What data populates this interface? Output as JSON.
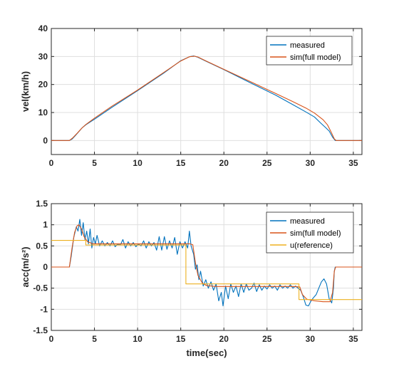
{
  "chart_data": [
    {
      "type": "line",
      "xlabel": "",
      "ylabel": "vel(km/h)",
      "xlim": [
        0,
        36
      ],
      "ylim": [
        -5,
        40
      ],
      "xticks": [
        0,
        5,
        10,
        15,
        20,
        25,
        30,
        35
      ],
      "yticks": [
        0,
        10,
        20,
        30,
        40
      ],
      "grid": true,
      "legend_position": "top-right",
      "series": [
        {
          "name": "measured",
          "color": "#0072BD",
          "points": [
            [
              0,
              0
            ],
            [
              2.1,
              0
            ],
            [
              2.4,
              0.5
            ],
            [
              2.8,
              1.8
            ],
            [
              3.2,
              3.2
            ],
            [
              3.6,
              4.6
            ],
            [
              4,
              5.6
            ],
            [
              5,
              7.6
            ],
            [
              7,
              11.8
            ],
            [
              10,
              17.8
            ],
            [
              13,
              24
            ],
            [
              15,
              28.5
            ],
            [
              16,
              29.9
            ],
            [
              16.5,
              30.2
            ],
            [
              17,
              29.7
            ],
            [
              18,
              28.2
            ],
            [
              20,
              25.3
            ],
            [
              23,
              20.7
            ],
            [
              26,
              16.2
            ],
            [
              28,
              12.8
            ],
            [
              29.5,
              10.2
            ],
            [
              30.5,
              8.4
            ],
            [
              31.2,
              6.3
            ],
            [
              31.7,
              4.9
            ],
            [
              32.2,
              3.4
            ],
            [
              32.6,
              1.2
            ],
            [
              32.9,
              0
            ],
            [
              36,
              0
            ]
          ]
        },
        {
          "name": "sim(full model)",
          "color": "#D95319",
          "points": [
            [
              0,
              0
            ],
            [
              2.1,
              0
            ],
            [
              2.5,
              1.0
            ],
            [
              3,
              2.6
            ],
            [
              3.5,
              4.3
            ],
            [
              4,
              5.7
            ],
            [
              5,
              8
            ],
            [
              7,
              12.2
            ],
            [
              10,
              18
            ],
            [
              13,
              24.2
            ],
            [
              15,
              28.4
            ],
            [
              16,
              29.9
            ],
            [
              16.6,
              30.1
            ],
            [
              17,
              29.8
            ],
            [
              18,
              28.3
            ],
            [
              20,
              25.4
            ],
            [
              23,
              21.1
            ],
            [
              26,
              16.8
            ],
            [
              28,
              13.9
            ],
            [
              29.5,
              11.6
            ],
            [
              30.5,
              9.8
            ],
            [
              31.5,
              7.4
            ],
            [
              32,
              5.6
            ],
            [
              32.4,
              3.2
            ],
            [
              32.8,
              0.6
            ],
            [
              33,
              0
            ],
            [
              36,
              0
            ]
          ]
        }
      ]
    },
    {
      "type": "line",
      "xlabel": "time(sec)",
      "ylabel": "acc(m/s²)",
      "xlim": [
        0,
        36
      ],
      "ylim": [
        -1.5,
        1.5
      ],
      "xticks": [
        0,
        5,
        10,
        15,
        20,
        25,
        30,
        35
      ],
      "yticks": [
        -1.5,
        -1,
        -0.5,
        0,
        0.5,
        1,
        1.5
      ],
      "ytick_labels": [
        "-1.5",
        "-1",
        "-0.5",
        "0",
        "0.5",
        "1",
        "1.5"
      ],
      "grid": true,
      "legend_position": "top-right",
      "series": [
        {
          "name": "measured",
          "color": "#0072BD",
          "points": [
            [
              0,
              0
            ],
            [
              2.1,
              0
            ],
            [
              2.3,
              0.25
            ],
            [
              2.6,
              0.7
            ],
            [
              2.9,
              0.95
            ],
            [
              3.1,
              0.85
            ],
            [
              3.3,
              1.13
            ],
            [
              3.5,
              0.75
            ],
            [
              3.7,
              1.05
            ],
            [
              3.9,
              0.65
            ],
            [
              4.1,
              0.85
            ],
            [
              4.3,
              0.55
            ],
            [
              4.5,
              0.9
            ],
            [
              4.7,
              0.45
            ],
            [
              4.9,
              0.7
            ],
            [
              5.1,
              0.55
            ],
            [
              5.3,
              0.75
            ],
            [
              5.6,
              0.5
            ],
            [
              5.9,
              0.62
            ],
            [
              6.2,
              0.5
            ],
            [
              6.5,
              0.58
            ],
            [
              6.8,
              0.5
            ],
            [
              7.1,
              0.62
            ],
            [
              7.4,
              0.48
            ],
            [
              7.7,
              0.55
            ],
            [
              8,
              0.52
            ],
            [
              8.3,
              0.65
            ],
            [
              8.6,
              0.45
            ],
            [
              8.9,
              0.6
            ],
            [
              9.2,
              0.5
            ],
            [
              9.5,
              0.58
            ],
            [
              9.8,
              0.48
            ],
            [
              10.1,
              0.55
            ],
            [
              10.4,
              0.5
            ],
            [
              10.7,
              0.62
            ],
            [
              11,
              0.45
            ],
            [
              11.3,
              0.6
            ],
            [
              11.6,
              0.5
            ],
            [
              11.9,
              0.58
            ],
            [
              12.2,
              0.4
            ],
            [
              12.5,
              0.72
            ],
            [
              12.8,
              0.4
            ],
            [
              13.1,
              0.72
            ],
            [
              13.4,
              0.42
            ],
            [
              13.7,
              0.62
            ],
            [
              14,
              0.45
            ],
            [
              14.3,
              0.7
            ],
            [
              14.6,
              0.3
            ],
            [
              14.9,
              0.6
            ],
            [
              15.2,
              0.45
            ],
            [
              15.5,
              0.6
            ],
            [
              15.8,
              0.45
            ],
            [
              16,
              0.85
            ],
            [
              16.2,
              0.5
            ],
            [
              16.5,
              0.3
            ],
            [
              16.7,
              -0.05
            ],
            [
              16.9,
              0.05
            ],
            [
              17.1,
              -0.3
            ],
            [
              17.3,
              -0.1
            ],
            [
              17.6,
              -0.45
            ],
            [
              17.9,
              -0.3
            ],
            [
              18.2,
              -0.5
            ],
            [
              18.5,
              -0.35
            ],
            [
              18.8,
              -0.55
            ],
            [
              19.1,
              -0.4
            ],
            [
              19.4,
              -0.8
            ],
            [
              19.7,
              -0.6
            ],
            [
              19.9,
              -0.92
            ],
            [
              20.2,
              -0.45
            ],
            [
              20.5,
              -0.75
            ],
            [
              20.8,
              -0.4
            ],
            [
              21.1,
              -0.6
            ],
            [
              21.4,
              -0.45
            ],
            [
              21.7,
              -0.7
            ],
            [
              22,
              -0.4
            ],
            [
              22.3,
              -0.6
            ],
            [
              22.6,
              -0.4
            ],
            [
              22.9,
              -0.55
            ],
            [
              23.2,
              -0.5
            ],
            [
              23.5,
              -0.38
            ],
            [
              23.8,
              -0.58
            ],
            [
              24.1,
              -0.42
            ],
            [
              24.4,
              -0.55
            ],
            [
              24.7,
              -0.45
            ],
            [
              25,
              -0.52
            ],
            [
              25.3,
              -0.42
            ],
            [
              25.6,
              -0.5
            ],
            [
              25.9,
              -0.45
            ],
            [
              26.2,
              -0.55
            ],
            [
              26.5,
              -0.42
            ],
            [
              26.8,
              -0.5
            ],
            [
              27.1,
              -0.45
            ],
            [
              27.4,
              -0.5
            ],
            [
              27.7,
              -0.42
            ],
            [
              28,
              -0.5
            ],
            [
              28.3,
              -0.45
            ],
            [
              28.6,
              -0.5
            ],
            [
              28.9,
              -0.55
            ],
            [
              29.2,
              -0.7
            ],
            [
              29.5,
              -0.9
            ],
            [
              29.8,
              -0.92
            ],
            [
              30.1,
              -0.8
            ],
            [
              30.4,
              -0.72
            ],
            [
              30.7,
              -0.65
            ],
            [
              31,
              -0.5
            ],
            [
              31.3,
              -0.35
            ],
            [
              31.6,
              -0.28
            ],
            [
              31.9,
              -0.4
            ],
            [
              32.2,
              -0.75
            ],
            [
              32.5,
              -0.85
            ],
            [
              32.7,
              -0.5
            ],
            [
              32.8,
              -0.1
            ],
            [
              32.9,
              0
            ],
            [
              36,
              0
            ]
          ]
        },
        {
          "name": "sim(full model)",
          "color": "#D95319",
          "points": [
            [
              0,
              0
            ],
            [
              2.1,
              0
            ],
            [
              2.4,
              0.45
            ],
            [
              2.7,
              0.82
            ],
            [
              3,
              0.98
            ],
            [
              3.2,
              1.0
            ],
            [
              3.5,
              0.9
            ],
            [
              3.8,
              0.72
            ],
            [
              4.2,
              0.6
            ],
            [
              4.8,
              0.55
            ],
            [
              6,
              0.55
            ],
            [
              10,
              0.55
            ],
            [
              14,
              0.55
            ],
            [
              16,
              0.55
            ],
            [
              16.4,
              0.53
            ],
            [
              16.7,
              0.1
            ],
            [
              17,
              -0.2
            ],
            [
              17.5,
              -0.38
            ],
            [
              18,
              -0.44
            ],
            [
              19,
              -0.46
            ],
            [
              22,
              -0.46
            ],
            [
              25,
              -0.46
            ],
            [
              28,
              -0.46
            ],
            [
              28.8,
              -0.47
            ],
            [
              29.1,
              -0.65
            ],
            [
              29.6,
              -0.76
            ],
            [
              30.5,
              -0.8
            ],
            [
              31.5,
              -0.82
            ],
            [
              32.3,
              -0.82
            ],
            [
              32.6,
              -0.6
            ],
            [
              32.8,
              -0.1
            ],
            [
              32.95,
              0
            ],
            [
              36,
              0
            ]
          ]
        },
        {
          "name": "u(reference)",
          "color": "#EDB120",
          "points": [
            [
              0,
              0.63
            ],
            [
              2.7,
              0.63
            ],
            [
              2.7,
              0.63
            ],
            [
              4,
              0.63
            ],
            [
              4,
              0.52
            ],
            [
              15.6,
              0.52
            ],
            [
              15.6,
              -0.4
            ],
            [
              28.7,
              -0.4
            ],
            [
              28.7,
              -0.77
            ],
            [
              36,
              -0.77
            ]
          ]
        }
      ]
    }
  ]
}
